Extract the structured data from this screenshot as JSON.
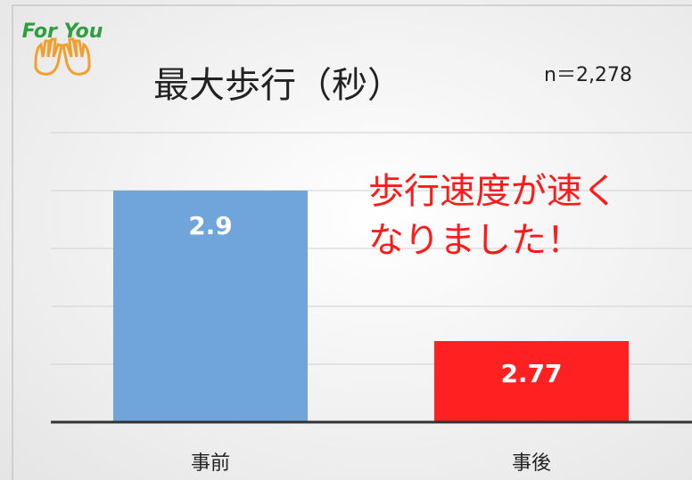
{
  "logo": "For You",
  "chart_data": {
    "type": "bar",
    "title": "最大歩行（秒）",
    "subtitle": "n＝2,278",
    "annotation": [
      "歩行速度が速く",
      "なりました！"
    ],
    "categories": [
      "事前",
      "事後"
    ],
    "values": [
      2.9,
      2.77
    ],
    "colors": [
      "#6fa5da",
      "#ff2121"
    ],
    "ylim": [
      2.7,
      2.95
    ],
    "yticks": [
      2.7,
      2.75,
      2.8,
      2.85,
      2.9,
      2.95
    ],
    "grid": true
  }
}
